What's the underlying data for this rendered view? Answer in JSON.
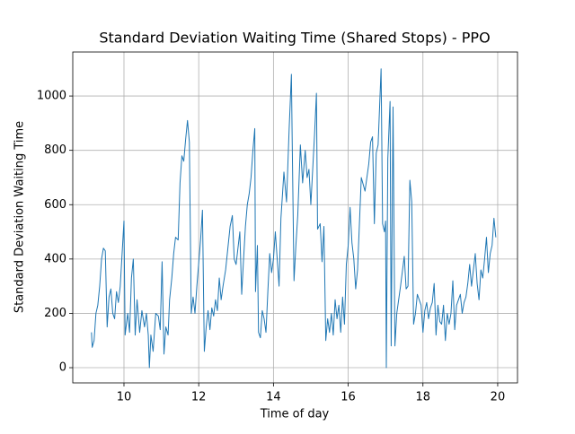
{
  "chart_data": {
    "type": "line",
    "title": "Standard Deviation Waiting Time (Shared Stops) - PPO",
    "x_label": "Time of day",
    "y_label": "Standard Deviation Waiting Time",
    "x": [
      9.13,
      9.15,
      9.2,
      9.25,
      9.3,
      9.35,
      9.4,
      9.45,
      9.5,
      9.55,
      9.6,
      9.65,
      9.7,
      9.75,
      9.8,
      9.85,
      9.9,
      9.95,
      10.0,
      10.03,
      10.1,
      10.15,
      10.2,
      10.25,
      10.3,
      10.35,
      10.42,
      10.48,
      10.55,
      10.6,
      10.65,
      10.68,
      10.72,
      10.78,
      10.85,
      10.92,
      10.97,
      11.02,
      11.07,
      11.12,
      11.18,
      11.22,
      11.28,
      11.33,
      11.38,
      11.45,
      11.5,
      11.55,
      11.6,
      11.65,
      11.7,
      11.75,
      11.8,
      11.85,
      11.9,
      11.95,
      12.05,
      12.1,
      12.15,
      12.2,
      12.25,
      12.3,
      12.35,
      12.4,
      12.45,
      12.5,
      12.55,
      12.6,
      12.65,
      12.72,
      12.78,
      12.84,
      12.9,
      12.95,
      13.0,
      13.05,
      13.1,
      13.15,
      13.2,
      13.25,
      13.3,
      13.35,
      13.4,
      13.45,
      13.5,
      13.52,
      13.57,
      13.6,
      13.65,
      13.7,
      13.75,
      13.8,
      13.85,
      13.9,
      13.95,
      14.0,
      14.05,
      14.1,
      14.15,
      14.2,
      14.28,
      14.35,
      14.42,
      14.48,
      14.5,
      14.55,
      14.6,
      14.65,
      14.72,
      14.78,
      14.85,
      14.9,
      14.95,
      15.0,
      15.1,
      15.15,
      15.18,
      15.25,
      15.3,
      15.35,
      15.4,
      15.45,
      15.5,
      15.55,
      15.6,
      15.65,
      15.7,
      15.75,
      15.8,
      15.85,
      15.9,
      15.95,
      16.0,
      16.05,
      16.1,
      16.15,
      16.2,
      16.25,
      16.35,
      16.45,
      16.55,
      16.6,
      16.65,
      16.7,
      16.75,
      16.8,
      16.88,
      16.92,
      16.97,
      17.0,
      17.02,
      17.06,
      17.12,
      17.15,
      17.2,
      17.25,
      17.3,
      17.4,
      17.5,
      17.55,
      17.6,
      17.65,
      17.7,
      17.75,
      17.8,
      17.85,
      17.9,
      17.95,
      18.0,
      18.05,
      18.1,
      18.15,
      18.2,
      18.25,
      18.3,
      18.35,
      18.4,
      18.45,
      18.5,
      18.55,
      18.6,
      18.65,
      18.7,
      18.75,
      18.8,
      18.85,
      18.9,
      18.95,
      19.0,
      19.05,
      19.1,
      19.15,
      19.2,
      19.25,
      19.3,
      19.35,
      19.4,
      19.45,
      19.5,
      19.55,
      19.6,
      19.65,
      19.7,
      19.75,
      19.8,
      19.85,
      19.9,
      19.95
    ],
    "values": [
      130,
      75,
      100,
      200,
      230,
      300,
      400,
      440,
      430,
      150,
      260,
      290,
      200,
      180,
      280,
      240,
      300,
      420,
      540,
      120,
      200,
      130,
      330,
      400,
      120,
      250,
      130,
      210,
      150,
      200,
      120,
      0,
      120,
      60,
      200,
      190,
      140,
      390,
      50,
      150,
      120,
      250,
      330,
      420,
      480,
      470,
      680,
      780,
      760,
      840,
      910,
      830,
      200,
      260,
      200,
      300,
      470,
      580,
      60,
      150,
      210,
      140,
      220,
      190,
      250,
      210,
      330,
      250,
      300,
      360,
      440,
      520,
      560,
      400,
      380,
      440,
      500,
      270,
      400,
      520,
      600,
      640,
      700,
      800,
      880,
      280,
      450,
      130,
      110,
      210,
      180,
      130,
      280,
      420,
      350,
      400,
      500,
      400,
      300,
      550,
      720,
      610,
      880,
      1080,
      850,
      320,
      450,
      560,
      820,
      680,
      800,
      700,
      730,
      600,
      860,
      1010,
      510,
      530,
      390,
      520,
      100,
      180,
      130,
      200,
      120,
      250,
      180,
      230,
      130,
      260,
      160,
      380,
      450,
      590,
      460,
      400,
      290,
      360,
      700,
      650,
      750,
      830,
      850,
      530,
      790,
      820,
      1100,
      530,
      500,
      540,
      0,
      770,
      980,
      80,
      960,
      80,
      200,
      300,
      410,
      290,
      300,
      690,
      610,
      160,
      200,
      270,
      250,
      230,
      130,
      210,
      240,
      180,
      220,
      240,
      310,
      120,
      230,
      170,
      160,
      230,
      100,
      200,
      160,
      200,
      320,
      140,
      230,
      250,
      270,
      200,
      240,
      260,
      310,
      380,
      300,
      360,
      420,
      310,
      250,
      360,
      330,
      400,
      480,
      350,
      420,
      450,
      550,
      480
    ],
    "color": "#1f77b4",
    "xlim": [
      8.63,
      20.53
    ],
    "xticks": [
      10,
      12,
      14,
      16,
      18,
      20
    ],
    "ylim": [
      -56,
      1162
    ],
    "yticks": [
      0,
      200,
      400,
      600,
      800,
      1000
    ],
    "grid": true
  }
}
